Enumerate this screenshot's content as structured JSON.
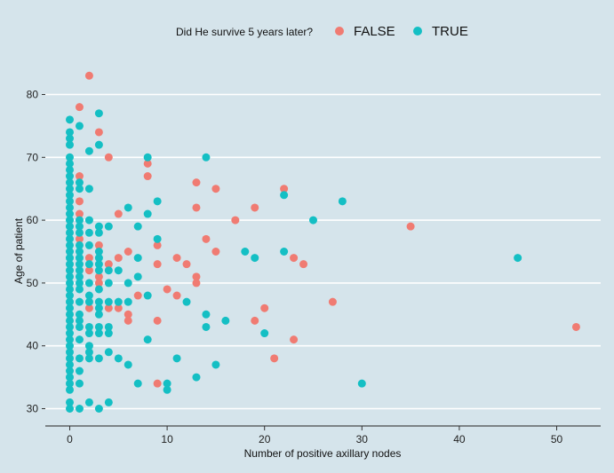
{
  "chart_data": {
    "type": "scatter",
    "xlabel": "Number of positive axillary nodes",
    "ylabel": "Age of patient",
    "xlim": [
      -2.5,
      54.5
    ],
    "ylim": [
      28,
      85
    ],
    "x_ticks": [
      0,
      10,
      20,
      30,
      40,
      50
    ],
    "y_ticks": [
      30,
      40,
      50,
      60,
      70,
      80
    ],
    "grid": "horizontal major lines",
    "legend": {
      "title": "Did He survive 5 years later?",
      "position": "top",
      "entries": [
        {
          "label": "FALSE",
          "color": "#f07b72"
        },
        {
          "label": "TRUE",
          "color": "#14bfc4"
        }
      ]
    },
    "series": [
      {
        "name": "FALSE",
        "color": "#f07b72",
        "points": [
          [
            2,
            83
          ],
          [
            1,
            78
          ],
          [
            3,
            74
          ],
          [
            4,
            70
          ],
          [
            8,
            69
          ],
          [
            8,
            67
          ],
          [
            1,
            67
          ],
          [
            13,
            66
          ],
          [
            22,
            65
          ],
          [
            15,
            65
          ],
          [
            1,
            63
          ],
          [
            13,
            62
          ],
          [
            19,
            62
          ],
          [
            1,
            61
          ],
          [
            5,
            61
          ],
          [
            17,
            60
          ],
          [
            35,
            59
          ],
          [
            6,
            55
          ],
          [
            15,
            55
          ],
          [
            9,
            56
          ],
          [
            1,
            57
          ],
          [
            3,
            56
          ],
          [
            14,
            57
          ],
          [
            2,
            54
          ],
          [
            5,
            54
          ],
          [
            11,
            54
          ],
          [
            23,
            54
          ],
          [
            12,
            53
          ],
          [
            24,
            53
          ],
          [
            9,
            53
          ],
          [
            2,
            52
          ],
          [
            3,
            51
          ],
          [
            3,
            50
          ],
          [
            4,
            53
          ],
          [
            13,
            51
          ],
          [
            13,
            50
          ],
          [
            10,
            49
          ],
          [
            11,
            48
          ],
          [
            7,
            48
          ],
          [
            27,
            47
          ],
          [
            2,
            46
          ],
          [
            5,
            46
          ],
          [
            6,
            45
          ],
          [
            6,
            44
          ],
          [
            9,
            44
          ],
          [
            19,
            44
          ],
          [
            20,
            46
          ],
          [
            52,
            43
          ],
          [
            23,
            41
          ],
          [
            21,
            38
          ],
          [
            9,
            34
          ],
          [
            4,
            46
          ]
        ]
      },
      {
        "name": "TRUE",
        "color": "#14bfc4",
        "points": [
          [
            0,
            30
          ],
          [
            0,
            31
          ],
          [
            0,
            33
          ],
          [
            0,
            34
          ],
          [
            0,
            35
          ],
          [
            0,
            36
          ],
          [
            0,
            37
          ],
          [
            0,
            38
          ],
          [
            0,
            39
          ],
          [
            0,
            40
          ],
          [
            0,
            41
          ],
          [
            0,
            42
          ],
          [
            0,
            43
          ],
          [
            0,
            44
          ],
          [
            0,
            45
          ],
          [
            0,
            46
          ],
          [
            0,
            47
          ],
          [
            0,
            48
          ],
          [
            0,
            49
          ],
          [
            0,
            50
          ],
          [
            0,
            51
          ],
          [
            0,
            52
          ],
          [
            0,
            53
          ],
          [
            0,
            54
          ],
          [
            0,
            55
          ],
          [
            0,
            56
          ],
          [
            0,
            57
          ],
          [
            0,
            58
          ],
          [
            0,
            59
          ],
          [
            0,
            60
          ],
          [
            0,
            61
          ],
          [
            0,
            62
          ],
          [
            0,
            63
          ],
          [
            0,
            64
          ],
          [
            0,
            65
          ],
          [
            0,
            66
          ],
          [
            0,
            67
          ],
          [
            0,
            68
          ],
          [
            0,
            69
          ],
          [
            0,
            70
          ],
          [
            0,
            72
          ],
          [
            0,
            73
          ],
          [
            0,
            74
          ],
          [
            0,
            76
          ],
          [
            1,
            30
          ],
          [
            1,
            34
          ],
          [
            1,
            36
          ],
          [
            1,
            38
          ],
          [
            1,
            41
          ],
          [
            1,
            43
          ],
          [
            1,
            44
          ],
          [
            1,
            45
          ],
          [
            1,
            47
          ],
          [
            1,
            49
          ],
          [
            1,
            50
          ],
          [
            1,
            51
          ],
          [
            1,
            52
          ],
          [
            1,
            53
          ],
          [
            1,
            54
          ],
          [
            1,
            55
          ],
          [
            1,
            56
          ],
          [
            1,
            58
          ],
          [
            1,
            59
          ],
          [
            1,
            60
          ],
          [
            1,
            65
          ],
          [
            1,
            66
          ],
          [
            1,
            75
          ],
          [
            2,
            31
          ],
          [
            2,
            38
          ],
          [
            2,
            39
          ],
          [
            2,
            40
          ],
          [
            2,
            42
          ],
          [
            2,
            43
          ],
          [
            2,
            47
          ],
          [
            2,
            48
          ],
          [
            2,
            50
          ],
          [
            2,
            53
          ],
          [
            2,
            56
          ],
          [
            2,
            58
          ],
          [
            2,
            60
          ],
          [
            2,
            65
          ],
          [
            2,
            71
          ],
          [
            3,
            30
          ],
          [
            3,
            38
          ],
          [
            3,
            42
          ],
          [
            3,
            43
          ],
          [
            3,
            45
          ],
          [
            3,
            46
          ],
          [
            3,
            47
          ],
          [
            3,
            49
          ],
          [
            3,
            52
          ],
          [
            3,
            53
          ],
          [
            3,
            54
          ],
          [
            3,
            55
          ],
          [
            3,
            58
          ],
          [
            3,
            59
          ],
          [
            3,
            72
          ],
          [
            3,
            77
          ],
          [
            4,
            31
          ],
          [
            4,
            39
          ],
          [
            4,
            42
          ],
          [
            4,
            43
          ],
          [
            4,
            47
          ],
          [
            4,
            50
          ],
          [
            4,
            52
          ],
          [
            4,
            59
          ],
          [
            5,
            38
          ],
          [
            5,
            47
          ],
          [
            5,
            52
          ],
          [
            6,
            37
          ],
          [
            6,
            47
          ],
          [
            6,
            50
          ],
          [
            6,
            62
          ],
          [
            7,
            34
          ],
          [
            7,
            51
          ],
          [
            7,
            54
          ],
          [
            7,
            59
          ],
          [
            8,
            41
          ],
          [
            8,
            48
          ],
          [
            8,
            61
          ],
          [
            8,
            70
          ],
          [
            9,
            57
          ],
          [
            9,
            63
          ],
          [
            10,
            33
          ],
          [
            10,
            34
          ],
          [
            11,
            38
          ],
          [
            12,
            47
          ],
          [
            13,
            35
          ],
          [
            14,
            43
          ],
          [
            14,
            45
          ],
          [
            14,
            70
          ],
          [
            15,
            37
          ],
          [
            16,
            44
          ],
          [
            18,
            55
          ],
          [
            19,
            54
          ],
          [
            20,
            42
          ],
          [
            22,
            55
          ],
          [
            22,
            64
          ],
          [
            25,
            60
          ],
          [
            28,
            63
          ],
          [
            30,
            34
          ],
          [
            46,
            54
          ]
        ]
      }
    ]
  }
}
